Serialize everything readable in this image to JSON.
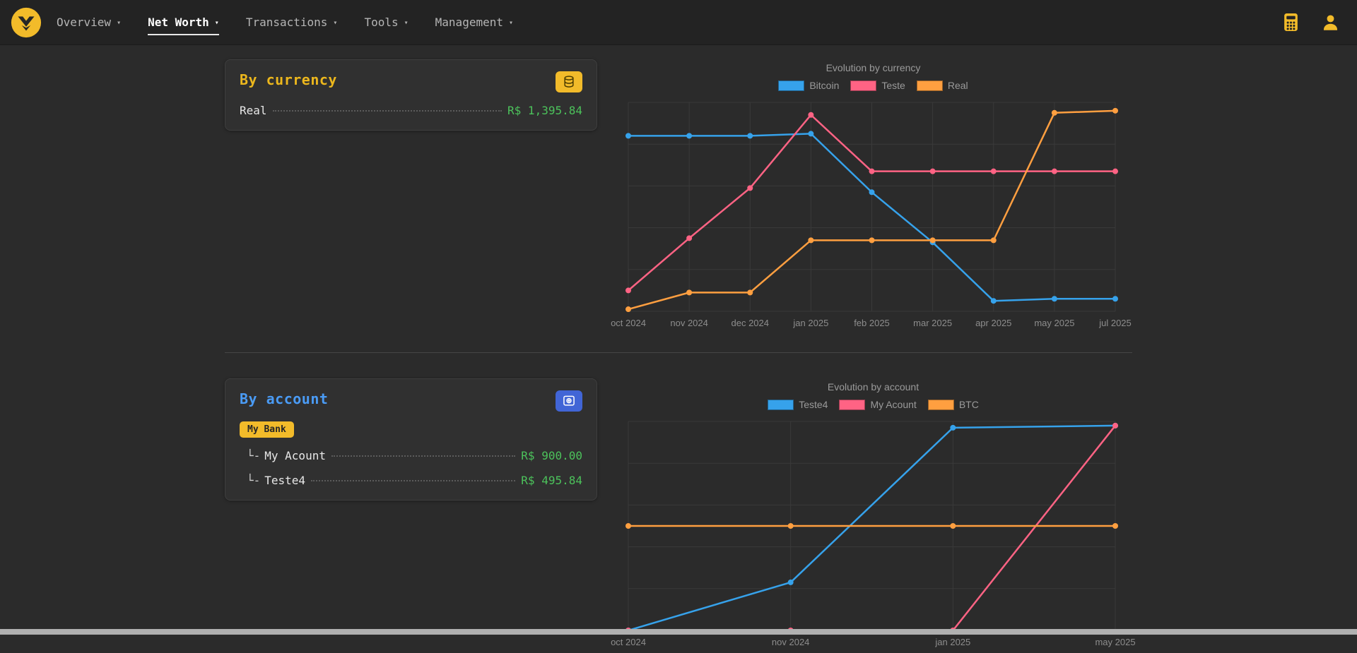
{
  "colors": {
    "background": "#2b2b2b",
    "navbar_bg": "#232323",
    "accent_yellow": "#f2bb2a",
    "accent_blue": "#4165d6",
    "title_yellow": "#ecb71d",
    "title_blue": "#4a9bf5",
    "money_green": "#4cc25b",
    "series_blue": "#36a2eb",
    "series_pink": "#ff6384",
    "series_orange": "#ff9f40"
  },
  "navbar": {
    "caret": "▾",
    "items": [
      {
        "label": "Overview"
      },
      {
        "label": "Net Worth",
        "active": true
      },
      {
        "label": "Transactions"
      },
      {
        "label": "Tools"
      },
      {
        "label": "Management"
      }
    ],
    "icons": [
      {
        "name": "calculator-icon"
      },
      {
        "name": "user-icon"
      }
    ]
  },
  "currency_card": {
    "title": "By currency",
    "icon": "coins-icon",
    "rows": [
      {
        "label": "Real",
        "value": "R$ 1,395.84"
      }
    ]
  },
  "account_card": {
    "title": "By account",
    "icon": "bank-icon",
    "badge": "My Bank",
    "rows": [
      {
        "prefix": "└-",
        "label": "My Acount",
        "value": "R$ 900.00"
      },
      {
        "prefix": "└-",
        "label": "Teste4",
        "value": "R$ 495.84"
      }
    ]
  },
  "chart_data": [
    {
      "type": "line",
      "title": "Evolution by currency",
      "legend_position": "top",
      "grid": true,
      "categories": [
        "oct 2024",
        "nov 2024",
        "dec 2024",
        "jan 2025",
        "feb 2025",
        "mar 2025",
        "apr 2025",
        "may 2025",
        "jul 2025"
      ],
      "ylim": [
        0,
        100
      ],
      "series": [
        {
          "name": "Bitcoin",
          "color": "#36a2eb",
          "values": [
            84,
            84,
            84,
            85,
            57,
            33,
            5,
            6,
            6
          ]
        },
        {
          "name": "Teste",
          "color": "#ff6384",
          "values": [
            10,
            35,
            59,
            94,
            67,
            67,
            67,
            67,
            67
          ]
        },
        {
          "name": "Real",
          "color": "#ff9f40",
          "values": [
            1,
            9,
            9,
            34,
            34,
            34,
            34,
            95,
            96
          ]
        }
      ]
    },
    {
      "type": "line",
      "title": "Evolution by account",
      "legend_position": "top",
      "grid": true,
      "categories": [
        "oct 2024",
        "nov 2024",
        "jan 2025",
        "may 2025"
      ],
      "ylim": [
        0,
        100
      ],
      "series": [
        {
          "name": "Teste4",
          "color": "#36a2eb",
          "values": [
            0,
            23,
            97,
            98
          ]
        },
        {
          "name": "My Acount",
          "color": "#ff6384",
          "values": [
            0,
            0,
            0,
            98
          ]
        },
        {
          "name": "BTC",
          "color": "#ff9f40",
          "values": [
            50,
            50,
            50,
            50
          ]
        }
      ]
    }
  ]
}
